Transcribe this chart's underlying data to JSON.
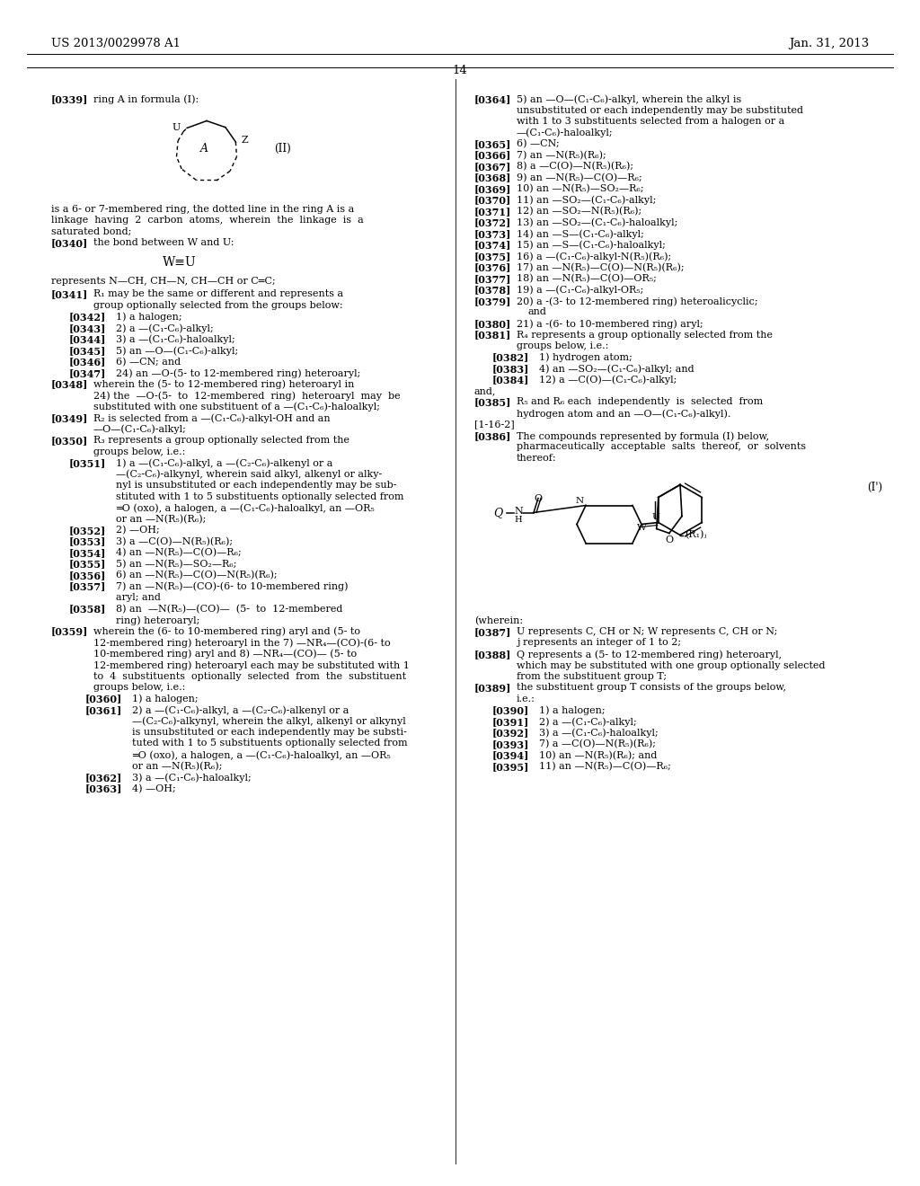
{
  "header_left": "US 2013/0029978 A1",
  "header_right": "Jan. 31, 2013",
  "page_number": "14",
  "background_color": "#ffffff",
  "fs": 8.0,
  "ls": 12.5
}
